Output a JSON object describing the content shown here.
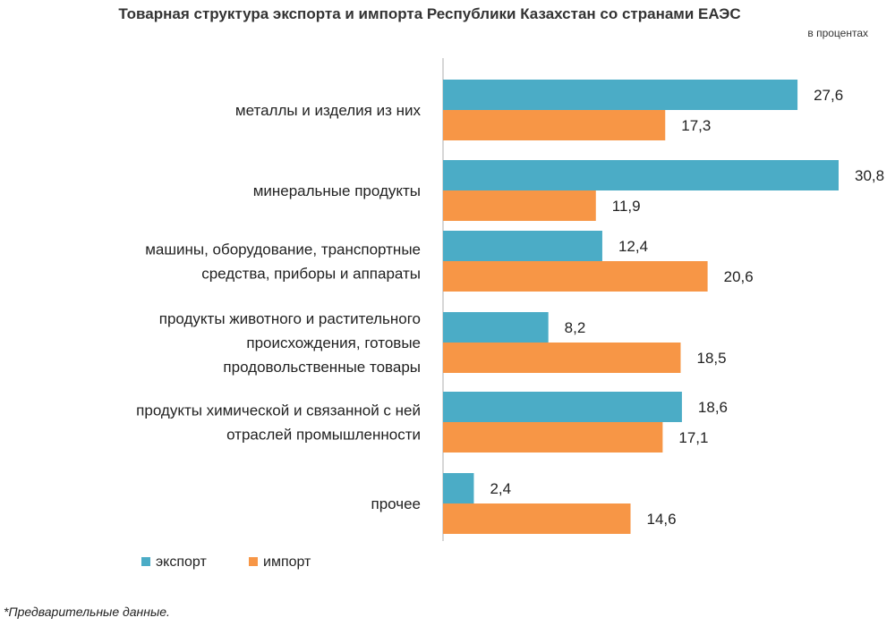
{
  "chart_data": {
    "type": "bar",
    "orientation": "horizontal",
    "title": "Товарная структура экспорта и импорта Республики Казахстан со странами ЕАЭС",
    "subtitle": "в процентах",
    "categories": [
      [
        "металлы и изделия из них"
      ],
      [
        "минеральные продукты"
      ],
      [
        "машины, оборудование, транспортные",
        "средства, приборы и аппараты"
      ],
      [
        "продукты животного и растительного",
        "происхождения, готовые",
        "продовольственные товары"
      ],
      [
        "продукты химической и связанной с ней",
        "отраслей промышленности"
      ],
      [
        "прочее"
      ]
    ],
    "series": [
      {
        "name": "экспорт",
        "color": "#4bacc6",
        "values": [
          27.6,
          30.8,
          12.4,
          8.2,
          18.6,
          2.4
        ],
        "labels": [
          "27,6",
          "30,8",
          "12,4",
          "8,2",
          "18,6",
          "2,4"
        ]
      },
      {
        "name": "импорт",
        "color": "#f79646",
        "values": [
          17.3,
          11.9,
          20.6,
          18.5,
          17.1,
          14.6
        ],
        "labels": [
          "17,3",
          "11,9",
          "20,6",
          "18,5",
          "17,1",
          "14,6"
        ]
      }
    ],
    "xlim": [
      0,
      31
    ],
    "grid": false,
    "legend": "bottom-left"
  },
  "footnote": "*Предварительные данные."
}
